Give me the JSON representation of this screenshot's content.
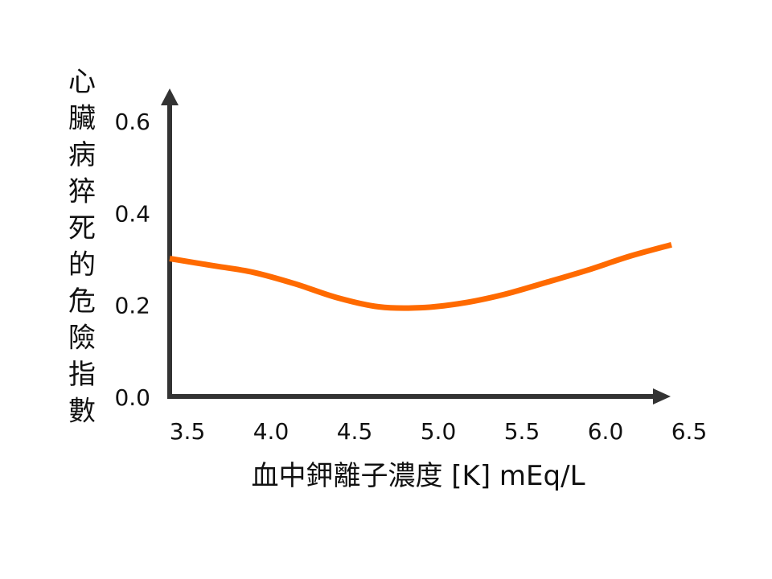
{
  "chart_data": {
    "type": "line",
    "title": "",
    "xlabel": "血中鉀離子濃度 [K]  mEq/L",
    "ylabel": "心臟病猝死的危險指數",
    "xlim": [
      3.5,
      6.5
    ],
    "ylim": [
      0.0,
      0.6
    ],
    "x_ticks": [
      "3.5",
      "4.0",
      "4.5",
      "5.0",
      "5.5",
      "6.0",
      "6.5"
    ],
    "y_ticks": [
      "0.0",
      "0.2",
      "0.4",
      "0.6"
    ],
    "grid": false,
    "legend": "none",
    "series": [
      {
        "x": [
          3.5,
          3.75,
          4.0,
          4.25,
          4.5,
          4.75,
          5.0,
          5.25,
          5.5,
          5.75,
          6.0,
          6.25,
          6.5
        ],
        "y": [
          0.3,
          0.285,
          0.27,
          0.245,
          0.215,
          0.195,
          0.193,
          0.203,
          0.222,
          0.248,
          0.275,
          0.305,
          0.33
        ]
      }
    ],
    "colors": {
      "line": "#ff6a00",
      "axis": "#333333"
    }
  }
}
